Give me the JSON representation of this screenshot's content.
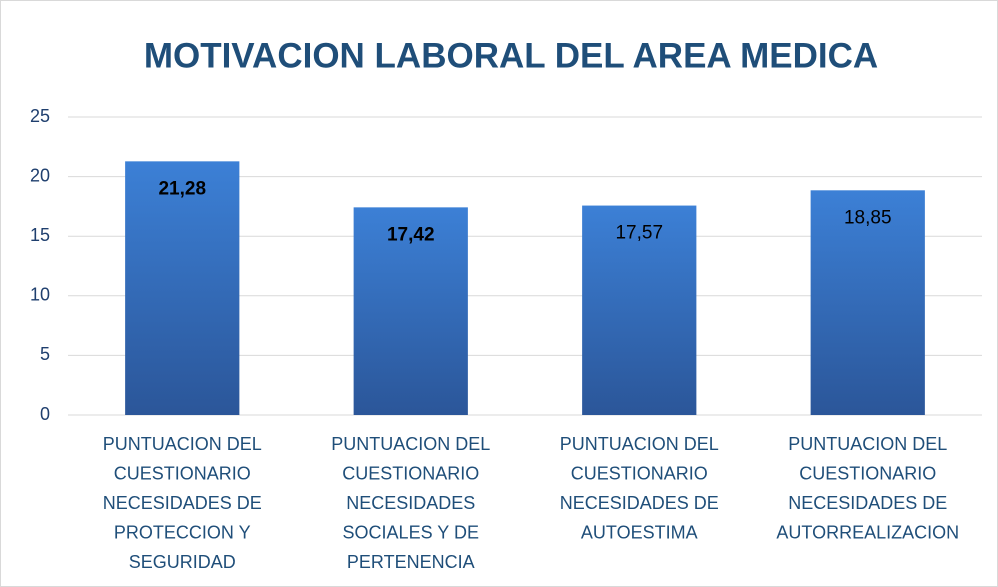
{
  "chart_data": {
    "type": "bar",
    "title": "MOTIVACION LABORAL DEL AREA MEDICA",
    "categories": [
      [
        "PUNTUACION DEL",
        "CUESTIONARIO",
        "NECESIDADES DE",
        "PROTECCION Y",
        "SEGURIDAD"
      ],
      [
        "PUNTUACION DEL",
        "CUESTIONARIO",
        "NECESIDADES",
        "SOCIALES Y DE",
        "PERTENENCIA"
      ],
      [
        "PUNTUACION DEL",
        "CUESTIONARIO",
        "NECESIDADES DE",
        "AUTOESTIMA"
      ],
      [
        "PUNTUACION DEL",
        "CUESTIONARIO",
        "NECESIDADES DE",
        "AUTORREALIZACION"
      ]
    ],
    "values": [
      21.28,
      17.42,
      17.57,
      18.85
    ],
    "value_labels": [
      "21,28",
      "17,42",
      "17,57",
      "18,85"
    ],
    "color": "#3a7bd0",
    "ylim": [
      0,
      25
    ],
    "yticks": [
      0,
      5,
      10,
      15,
      20,
      25
    ],
    "grid": true
  }
}
